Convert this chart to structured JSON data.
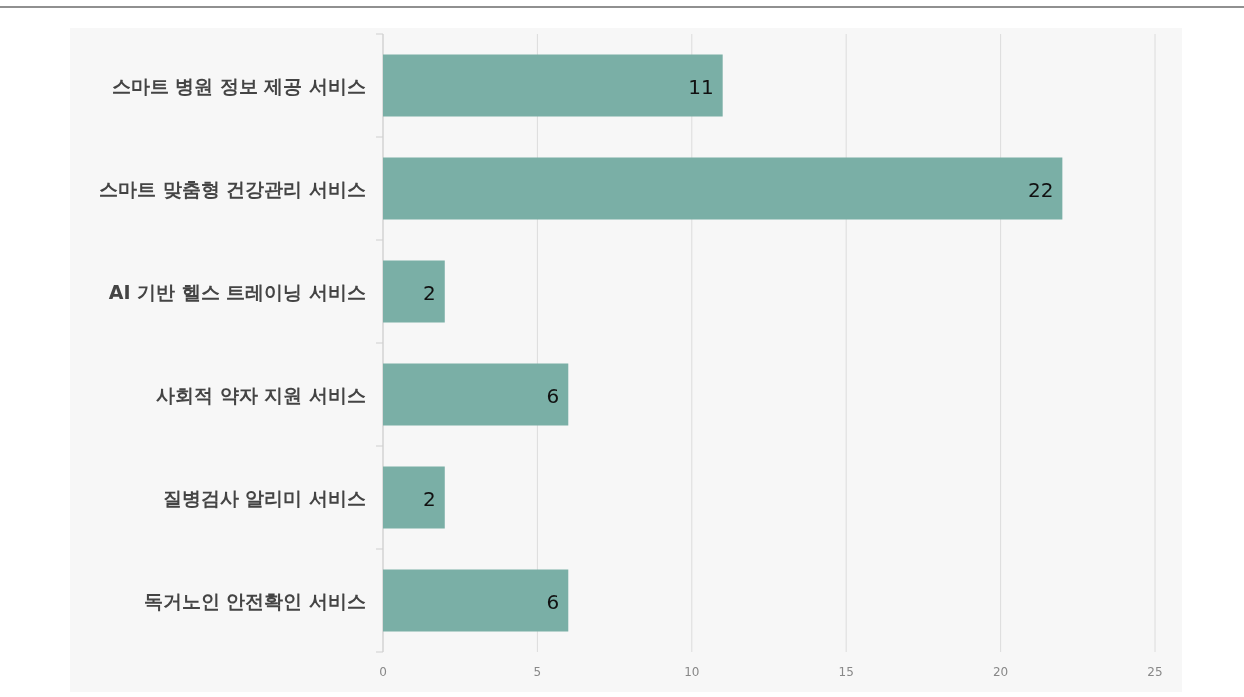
{
  "chart_data": {
    "type": "bar",
    "orientation": "horizontal",
    "categories": [
      "스마트 병원 정보 제공 서비스",
      "스마트 맞춤형 건강관리 서비스",
      "AI 기반 헬스 트레이닝 서비스",
      "사회적 약자 지원 서비스",
      "질병검사 알리미 서비스",
      "독거노인 안전확인 서비스"
    ],
    "values": [
      11,
      22,
      2,
      6,
      2,
      6
    ],
    "color": "#7aafa6",
    "xlim": [
      0,
      25
    ],
    "xticks": [
      0,
      5,
      10,
      15,
      20,
      25
    ],
    "grid": "x",
    "data_labels": true
  }
}
